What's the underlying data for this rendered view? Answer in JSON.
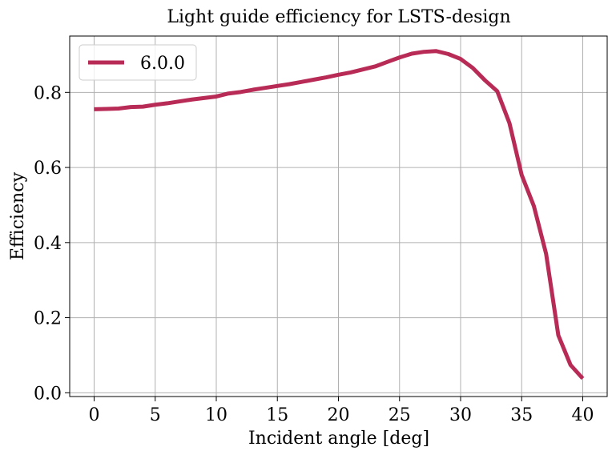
{
  "chart_data": {
    "type": "line",
    "title": "Light guide efficiency for LSTS-design",
    "xlabel": "Incident angle [deg]",
    "ylabel": "Efficiency",
    "xlim": [
      -2,
      42
    ],
    "ylim": [
      -0.01,
      0.95
    ],
    "xticks": [
      0,
      5,
      10,
      15,
      20,
      25,
      30,
      35,
      40
    ],
    "yticks": [
      0.0,
      0.2,
      0.4,
      0.6,
      0.8
    ],
    "ytick_labels": [
      "0.0",
      "0.2",
      "0.4",
      "0.6",
      "0.8"
    ],
    "grid": true,
    "legend_position": "top-left",
    "series": [
      {
        "name": "6.0.0",
        "color": "#b92b57",
        "x": [
          0,
          1,
          2,
          3,
          4,
          5,
          6,
          7,
          8,
          9,
          10,
          11,
          12,
          13,
          14,
          15,
          16,
          17,
          18,
          19,
          20,
          21,
          22,
          23,
          24,
          25,
          26,
          27,
          28,
          29,
          30,
          31,
          32,
          33,
          34,
          35,
          36,
          37,
          38,
          39,
          40
        ],
        "y": [
          0.755,
          0.756,
          0.757,
          0.761,
          0.762,
          0.767,
          0.771,
          0.776,
          0.781,
          0.785,
          0.789,
          0.797,
          0.801,
          0.807,
          0.812,
          0.817,
          0.822,
          0.828,
          0.834,
          0.84,
          0.847,
          0.853,
          0.861,
          0.869,
          0.881,
          0.893,
          0.903,
          0.908,
          0.91,
          0.902,
          0.889,
          0.865,
          0.832,
          0.803,
          0.718,
          0.58,
          0.497,
          0.37,
          0.153,
          0.074,
          0.038
        ]
      }
    ]
  }
}
